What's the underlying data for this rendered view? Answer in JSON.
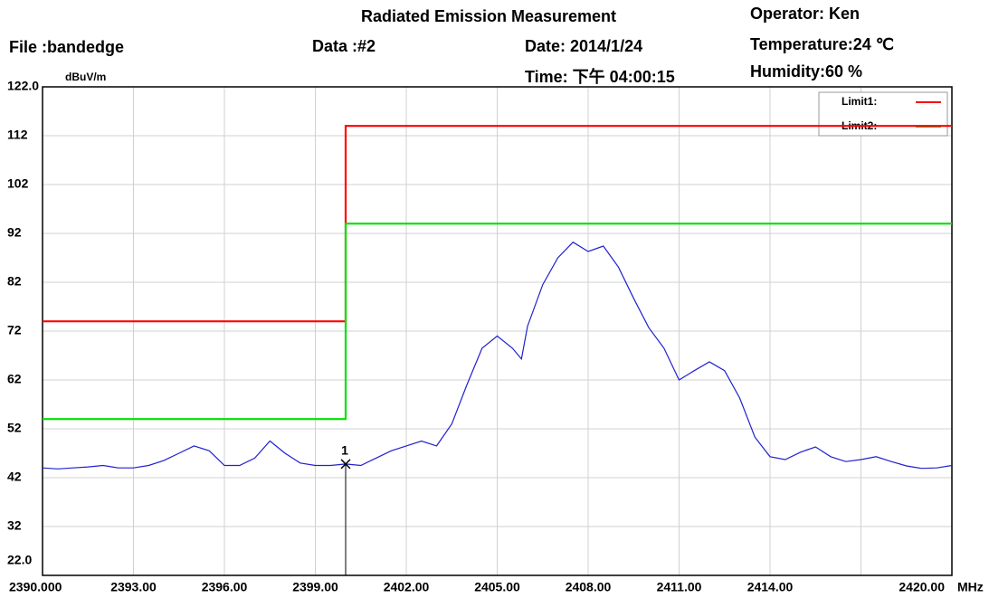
{
  "chart_data": {
    "type": "line",
    "title": "Radiated Emission Measurement",
    "header": {
      "file": "File :bandedge",
      "data": "Data :#2",
      "date": "Date: 2014/1/24",
      "time": "Time: 下午 04:00:15",
      "operator": "Operator:   Ken",
      "temperature": "Temperature:24 ℃",
      "humidity": "Humidity:60 %"
    },
    "y_unit": "dBuV/m",
    "x_unit": "MHz",
    "xlim": [
      2390,
      2420
    ],
    "ylim": [
      22,
      122
    ],
    "xticks": [
      {
        "value": 2390,
        "label": "2390.000"
      },
      {
        "value": 2393,
        "label": "2393.00"
      },
      {
        "value": 2396,
        "label": "2396.00"
      },
      {
        "value": 2399,
        "label": "2399.00"
      },
      {
        "value": 2402,
        "label": "2402.00"
      },
      {
        "value": 2405,
        "label": "2405.00"
      },
      {
        "value": 2408,
        "label": "2408.00"
      },
      {
        "value": 2411,
        "label": "2411.00"
      },
      {
        "value": 2414,
        "label": "2414.00"
      },
      {
        "value": 2417,
        "label": null
      },
      {
        "value": 2420,
        "label": "2420.00"
      }
    ],
    "yticks": [
      {
        "value": 22,
        "label": "22.0"
      },
      32,
      42,
      52,
      62,
      72,
      82,
      92,
      102,
      112,
      {
        "value": 122,
        "label": "122.0"
      }
    ],
    "grid": true,
    "legend": "top-right",
    "series": [
      {
        "name": "Limit1:",
        "color": "#ff0000",
        "x": [
          2390,
          2400,
          2400,
          2420
        ],
        "values": [
          74,
          74,
          114,
          114
        ]
      },
      {
        "name": "Limit2:",
        "color": "#00e000",
        "x": [
          2390,
          2400,
          2400,
          2420
        ],
        "values": [
          54,
          54,
          94,
          94
        ]
      },
      {
        "color": "#2020d0",
        "x": [
          2390,
          2390.5,
          2391,
          2391.5,
          2392,
          2392.5,
          2393,
          2393.5,
          2394,
          2394.5,
          2395,
          2395.5,
          2396,
          2396.5,
          2397,
          2397.5,
          2398,
          2398.5,
          2399,
          2399.5,
          2400,
          2400.5,
          2401,
          2401.5,
          2402,
          2402.5,
          2403,
          2403.5,
          2404,
          2404.5,
          2405,
          2405.5,
          2405.8,
          2406,
          2406.5,
          2407,
          2407.5,
          2408,
          2408.5,
          2409,
          2409.5,
          2410,
          2410.5,
          2411,
          2411.5,
          2412,
          2412.5,
          2413,
          2413.5,
          2414,
          2414.5,
          2415,
          2415.5,
          2416,
          2416.5,
          2417,
          2417.5,
          2418,
          2418.5,
          2419,
          2419.5,
          2420
        ],
        "values": [
          44,
          43.8,
          44,
          44.2,
          44.5,
          44,
          44,
          44.5,
          45.5,
          47,
          48.5,
          47.5,
          44.5,
          44.5,
          46,
          49.5,
          47,
          45,
          44.5,
          44.5,
          44.8,
          44.5,
          46,
          47.5,
          48.5,
          49.5,
          48.5,
          53,
          61,
          68.5,
          71,
          68.5,
          66.3,
          73,
          81.5,
          87,
          90.2,
          88.3,
          89.4,
          85.1,
          78.7,
          72.7,
          68.5,
          62,
          63.9,
          65.7,
          63.9,
          58.3,
          50.3,
          46.3,
          45.7,
          47.2,
          48.3,
          46.3,
          45.3,
          45.7,
          46.3,
          45.3,
          44.4,
          43.9,
          44,
          44.5
        ]
      }
    ],
    "markers": [
      {
        "label": "1",
        "x": 2400,
        "y": 44.8
      }
    ]
  }
}
